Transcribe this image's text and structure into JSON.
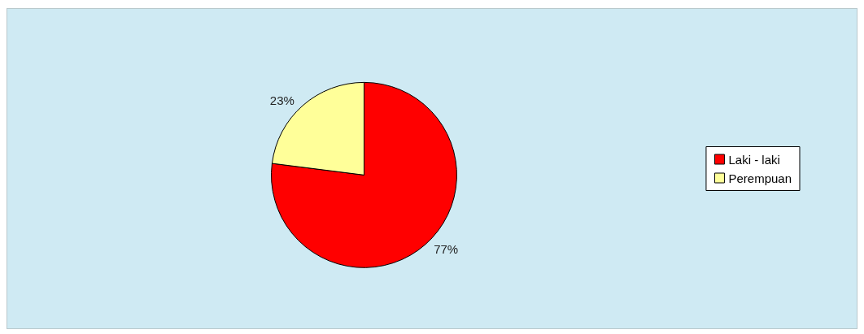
{
  "chart_data": {
    "type": "pie",
    "categories": [
      "Laki - laki",
      "Perempuan"
    ],
    "values": [
      77,
      23
    ],
    "colors": [
      "#ff0000",
      "#ffff99"
    ],
    "value_labels": [
      "77%",
      "23%"
    ],
    "legend": "right"
  }
}
